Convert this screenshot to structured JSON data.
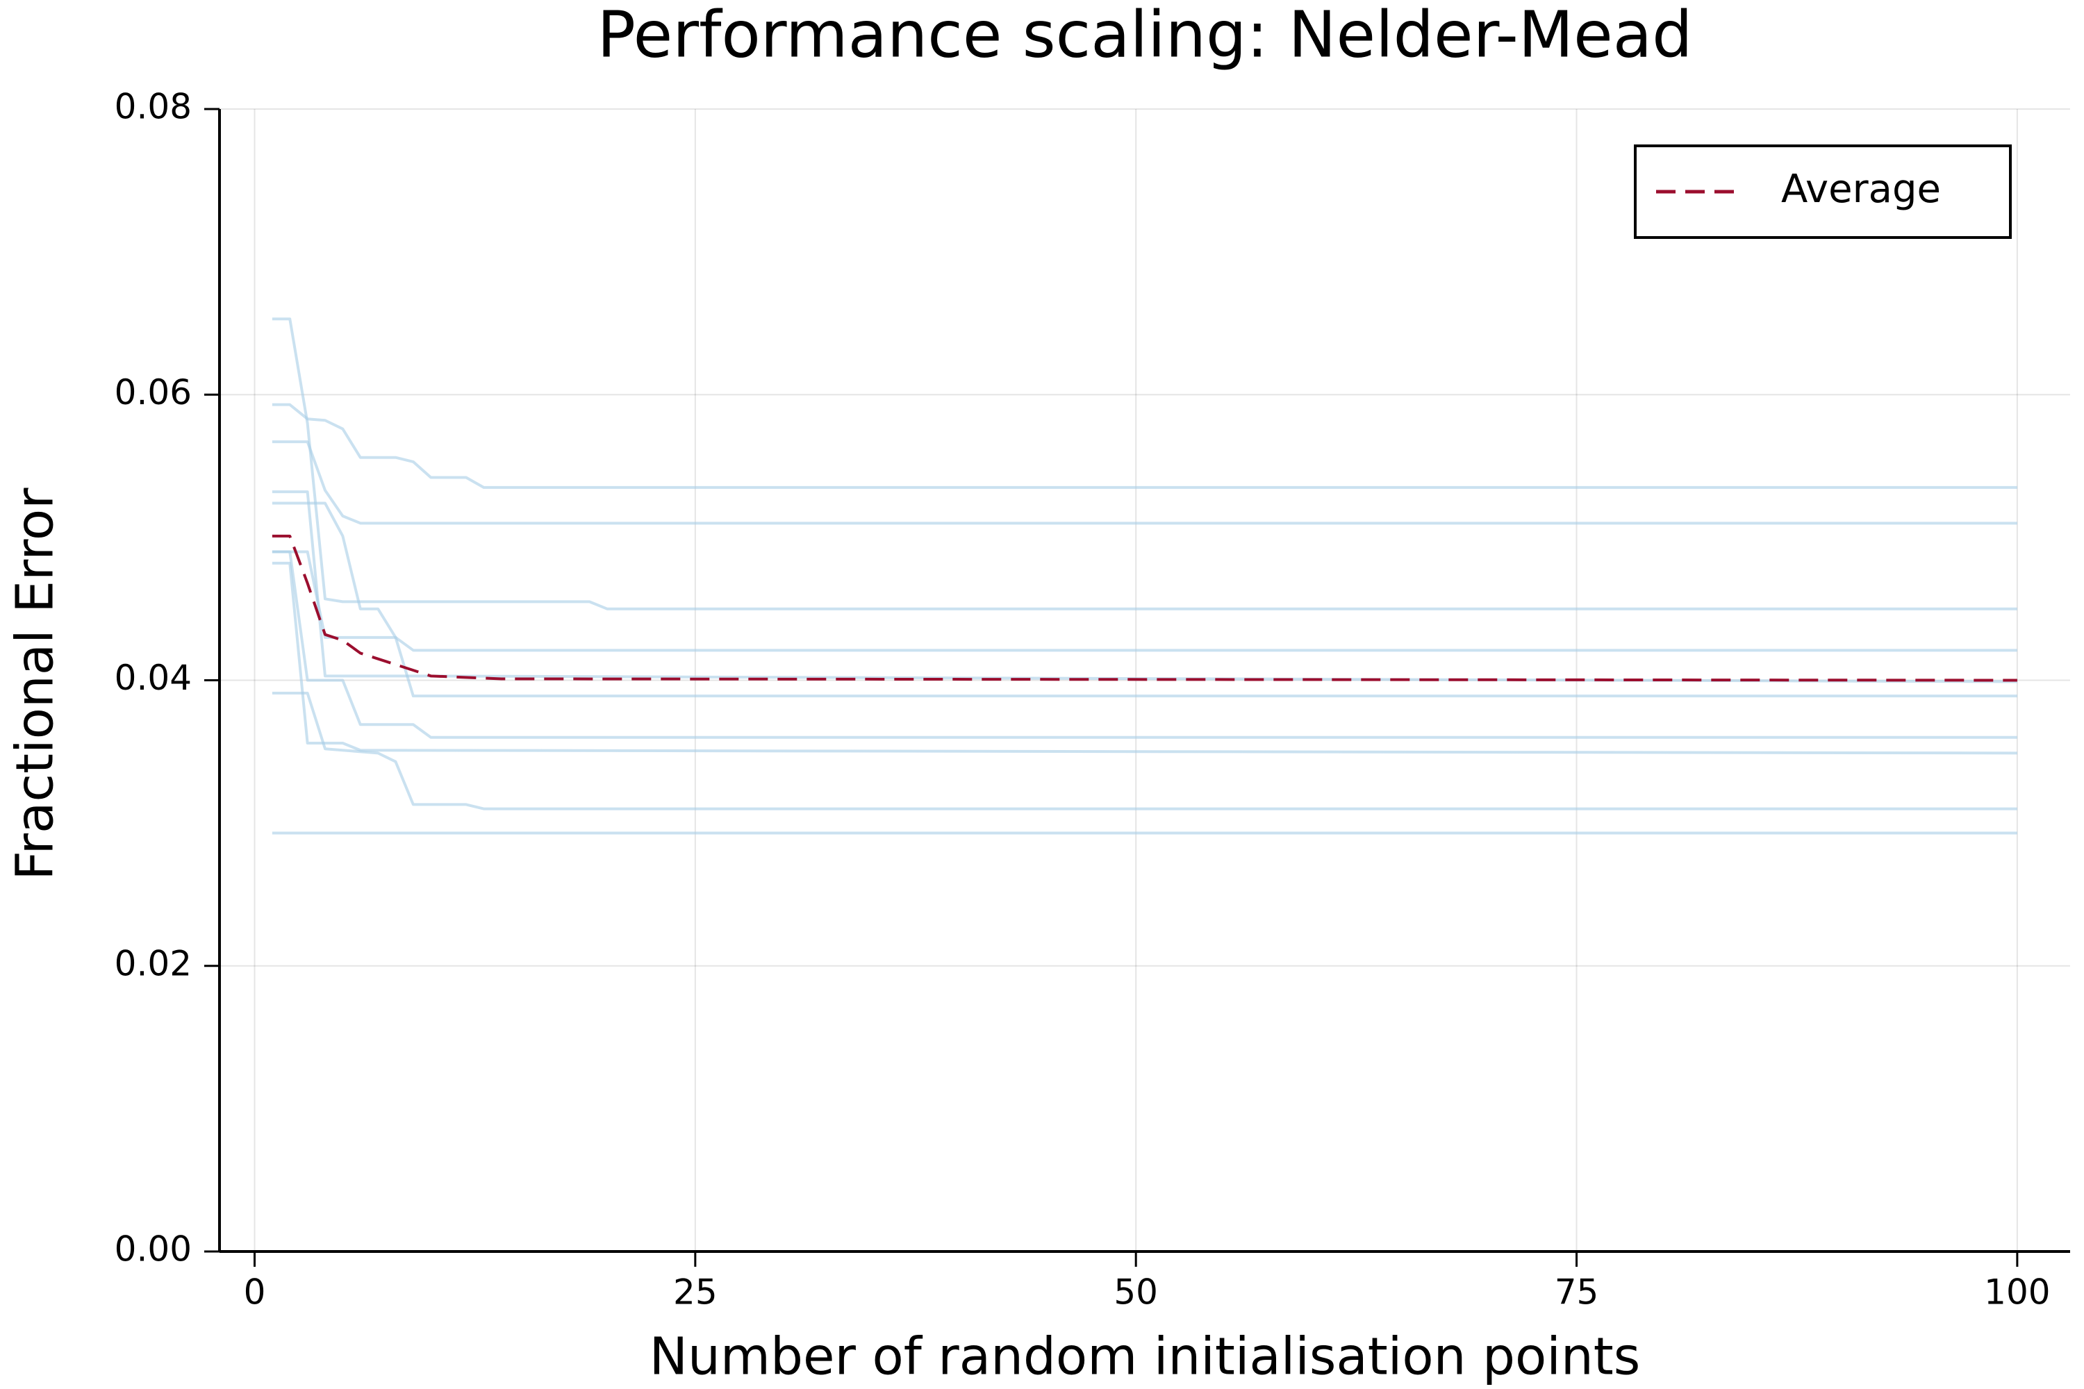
{
  "chart_data": {
    "type": "line",
    "title": "Performance scaling: Nelder-Mead",
    "xlabel": "Number of random initialisation points",
    "ylabel": "Fractional Error",
    "xlim": [
      -1.99,
      103
    ],
    "xticks": [
      0,
      25,
      50,
      75,
      100
    ],
    "ylim": [
      0,
      0.08
    ],
    "yticks": [
      {
        "value": 0,
        "label": "0.00"
      },
      {
        "value": 0.02,
        "label": "0.02"
      },
      {
        "value": 0.04,
        "label": "0.04"
      },
      {
        "value": 0.06,
        "label": "0.06"
      },
      {
        "value": 0.08,
        "label": "0.08"
      }
    ],
    "grid": true,
    "legend": "top-right",
    "series": [
      {
        "color": "#a6cde6",
        "x": [
          1,
          2,
          3,
          4,
          5,
          19,
          20,
          100
        ],
        "values": [
          0.0653,
          0.0653,
          0.058,
          0.0457,
          0.0455,
          0.0455,
          0.045,
          0.045
        ]
      },
      {
        "color": "#a6cde6",
        "x": [
          1,
          2,
          3,
          4,
          5,
          6,
          8,
          9,
          10,
          12,
          13,
          100
        ],
        "values": [
          0.0593,
          0.0593,
          0.0583,
          0.0582,
          0.0576,
          0.0556,
          0.0556,
          0.0553,
          0.0542,
          0.0542,
          0.0535,
          0.0535
        ]
      },
      {
        "color": "#a6cde6",
        "x": [
          1,
          3,
          4,
          5,
          6,
          100
        ],
        "values": [
          0.0567,
          0.0567,
          0.0533,
          0.0515,
          0.051,
          0.051
        ]
      },
      {
        "color": "#a6cde6",
        "x": [
          1,
          3,
          4,
          9,
          100
        ],
        "values": [
          0.0532,
          0.0532,
          0.0403,
          0.0403,
          0.0399
        ]
      },
      {
        "color": "#a6cde6",
        "x": [
          1,
          3,
          4,
          5,
          6,
          7,
          8,
          9,
          100
        ],
        "values": [
          0.0524,
          0.0524,
          0.0524,
          0.0501,
          0.045,
          0.045,
          0.043,
          0.0389,
          0.0389
        ]
      },
      {
        "color": "#a6cde6",
        "x": [
          1,
          3,
          4,
          8,
          9,
          100
        ],
        "values": [
          0.049,
          0.049,
          0.043,
          0.043,
          0.0421,
          0.0421
        ]
      },
      {
        "color": "#a6cde6",
        "x": [
          1,
          2,
          3,
          5,
          6,
          9,
          10,
          100
        ],
        "values": [
          0.049,
          0.049,
          0.04,
          0.04,
          0.0369,
          0.0369,
          0.036,
          0.036
        ]
      },
      {
        "color": "#a6cde6",
        "x": [
          1,
          2,
          3,
          5,
          6,
          100
        ],
        "values": [
          0.0482,
          0.0482,
          0.0356,
          0.0356,
          0.0351,
          0.0349
        ]
      },
      {
        "color": "#a6cde6",
        "x": [
          1,
          3,
          4,
          7,
          8,
          9,
          12,
          13,
          100
        ],
        "values": [
          0.0391,
          0.0391,
          0.0352,
          0.0349,
          0.0343,
          0.0313,
          0.0313,
          0.031,
          0.031
        ]
      },
      {
        "color": "#a6cde6",
        "x": [
          1,
          100
        ],
        "values": [
          0.0293,
          0.0293
        ]
      },
      {
        "name": "Average",
        "color": "#9b0e2e",
        "dash": true,
        "x": [
          1,
          2,
          3,
          4,
          5,
          6,
          8,
          10,
          14,
          100
        ],
        "values": [
          0.0501,
          0.0501,
          0.0468,
          0.0432,
          0.0428,
          0.0419,
          0.0411,
          0.0403,
          0.0401,
          0.04
        ]
      }
    ]
  }
}
